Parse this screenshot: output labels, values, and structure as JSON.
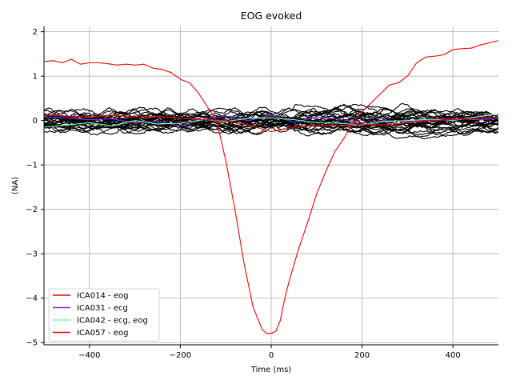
{
  "chart_data": {
    "type": "line",
    "title": "EOG evoked",
    "xlabel": "Time (ms)",
    "ylabel": "(NA)",
    "xlim": [
      -500,
      500
    ],
    "ylim": [
      -5.05,
      2.12
    ],
    "xticks": [
      -400,
      -200,
      0,
      200,
      400
    ],
    "xtick_labels": [
      "−400",
      "−200",
      "0",
      "200",
      "400"
    ],
    "yticks": [
      -5,
      -4,
      -3,
      -2,
      -1,
      0,
      1,
      2
    ],
    "ytick_labels": [
      "−5",
      "−4",
      "−3",
      "−2",
      "−1",
      "0",
      "1",
      "2"
    ],
    "grid": true,
    "legend_position": "bottom-left",
    "legend": [
      "ICA014 - eog",
      "ICA031 - ecg",
      "ICA042 - ecg, eog",
      "ICA057 - eog"
    ],
    "series": [
      {
        "name": "ICA014 - eog",
        "color": "#ff0000",
        "x": [
          -500,
          -480,
          -460,
          -440,
          -420,
          -400,
          -380,
          -360,
          -340,
          -320,
          -300,
          -280,
          -260,
          -240,
          -220,
          -200,
          -180,
          -160,
          -140,
          -120,
          -100,
          -80,
          -60,
          -40,
          -20,
          -10,
          0,
          10,
          20,
          30,
          40,
          60,
          80,
          100,
          120,
          140,
          160,
          180,
          200,
          220,
          240,
          260,
          280,
          300,
          320,
          340,
          360,
          380,
          400,
          420,
          440,
          460,
          480,
          500
        ],
        "values": [
          1.33,
          1.35,
          1.3,
          1.38,
          1.27,
          1.3,
          1.3,
          1.28,
          1.25,
          1.27,
          1.25,
          1.27,
          1.18,
          1.15,
          1.08,
          0.93,
          0.85,
          0.62,
          0.3,
          0.0,
          -0.9,
          -2.0,
          -3.2,
          -4.2,
          -4.7,
          -4.8,
          -4.79,
          -4.75,
          -4.5,
          -4.0,
          -3.6,
          -2.9,
          -2.3,
          -1.65,
          -1.15,
          -0.7,
          -0.4,
          -0.05,
          0.2,
          0.4,
          0.6,
          0.8,
          0.85,
          1.0,
          1.3,
          1.43,
          1.45,
          1.48,
          1.6,
          1.62,
          1.63,
          1.7,
          1.75,
          1.8
        ]
      },
      {
        "name": "ICA031 - ecg",
        "color": "#7b2bff",
        "x": [
          -500,
          -450,
          -400,
          -350,
          -300,
          -250,
          -200,
          -150,
          -100,
          -50,
          0,
          50,
          100,
          150,
          200,
          250,
          300,
          350,
          400,
          450,
          500
        ],
        "values": [
          0.08,
          0.06,
          0.02,
          0.04,
          -0.05,
          -0.02,
          -0.12,
          0.02,
          0.1,
          0.0,
          0.12,
          -0.04,
          0.08,
          0.03,
          -0.05,
          0.0,
          -0.02,
          0.02,
          0.05,
          0.02,
          0.04
        ]
      },
      {
        "name": "ICA042 - ecg, eog",
        "color": "#7dffad",
        "x": [
          -500,
          -450,
          -400,
          -350,
          -300,
          -250,
          -200,
          -150,
          -100,
          -50,
          0,
          50,
          100,
          150,
          200,
          250,
          300,
          350,
          400,
          450,
          500
        ],
        "values": [
          -0.15,
          -0.1,
          -0.05,
          -0.12,
          0.0,
          -0.08,
          -0.06,
          0.02,
          -0.02,
          0.05,
          0.06,
          0.02,
          -0.05,
          -0.06,
          -0.1,
          -0.02,
          0.0,
          0.03,
          0.0,
          0.08,
          0.15
        ]
      },
      {
        "name": "ICA057 - eog",
        "color": "#ff0000",
        "x": [
          -500,
          -450,
          -400,
          -350,
          -300,
          -250,
          -200,
          -150,
          -100,
          -50,
          0,
          50,
          100,
          150,
          200,
          250,
          300,
          350,
          400,
          450,
          500
        ],
        "values": [
          0.12,
          0.1,
          0.08,
          0.12,
          0.08,
          0.1,
          0.05,
          0.02,
          0.0,
          -0.1,
          -0.25,
          -0.15,
          -0.1,
          -0.12,
          -0.08,
          -0.1,
          -0.05,
          0.0,
          0.02,
          0.05,
          0.08
        ]
      }
    ],
    "background_traces": {
      "color": "#000000",
      "count": 28,
      "value_range": [
        -0.45,
        0.68
      ]
    }
  }
}
